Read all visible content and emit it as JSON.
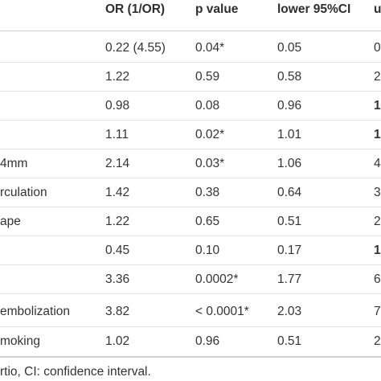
{
  "header": [
    "",
    "OR (1/OR)",
    "p value",
    "lower 95%CI",
    "u"
  ],
  "rows": [
    {
      "label": "",
      "or": "0.22 (4.55)",
      "p": "0.04*",
      "lower": "0.05",
      "upper": "0"
    },
    {
      "label": "",
      "or": "1.22",
      "p": "0.59",
      "lower": "0.58",
      "upper": "2"
    },
    {
      "label": "",
      "or": "0.98",
      "p": "0.08",
      "lower": "0.96",
      "upper": "1"
    },
    {
      "label": "",
      "or": "1.11",
      "p": "0.02*",
      "lower": "1.01",
      "upper": "1"
    },
    {
      "label": "4mm",
      "or": "2.14",
      "p": "0.03*",
      "lower": "1.06",
      "upper": "4"
    },
    {
      "label": "rculation",
      "or": "1.42",
      "p": "0.38",
      "lower": "0.64",
      "upper": "3"
    },
    {
      "label": "ape",
      "or": "1.22",
      "p": "0.65",
      "lower": "0.51",
      "upper": "2"
    },
    {
      "label": "",
      "or": "0.45",
      "p": "0.10",
      "lower": "0.17",
      "upper": "1"
    },
    {
      "label": "",
      "or": "3.36",
      "p": "0.0002*",
      "lower": "1.77",
      "upper": "6"
    },
    {
      "label": "embolization",
      "or": "3.82",
      "p": "< 0.0001*",
      "lower": "2.03",
      "upper": "7"
    },
    {
      "label": "moking",
      "or": "1.02",
      "p": "0.96",
      "lower": "0.51",
      "upper": "2"
    }
  ],
  "footnote": "rtio, CI: confidence interval."
}
